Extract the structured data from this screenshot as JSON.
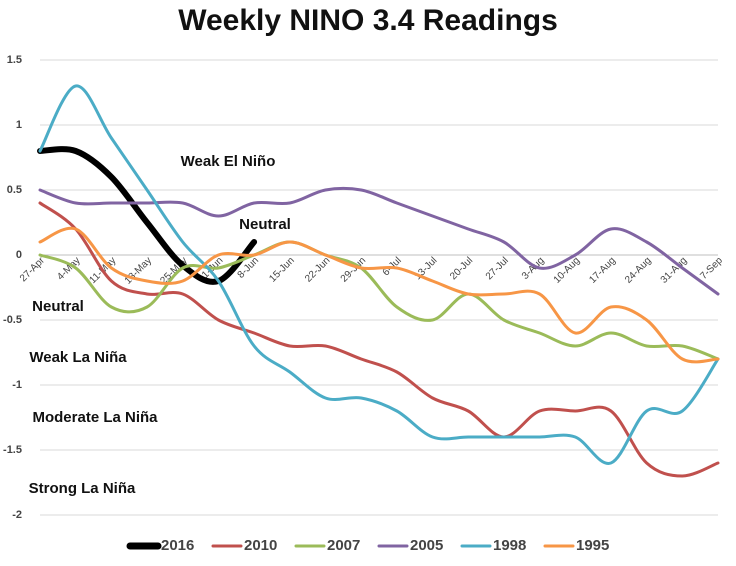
{
  "chart_data": {
    "type": "line",
    "title": "Weekly NINO 3.4 Readings",
    "categories": [
      "27-Apr",
      "4-May",
      "11-May",
      "18-May",
      "25-May",
      "1-Jun",
      "8-Jun",
      "15-Jun",
      "22-Jun",
      "29-Jun",
      "6-Jul",
      "13-Jul",
      "20-Jul",
      "27-Jul",
      "3-Aug",
      "10-Aug",
      "17-Aug",
      "24-Aug",
      "31-Aug",
      "7-Sep"
    ],
    "series": [
      {
        "name": "2016",
        "color": "#000000",
        "values": [
          0.8,
          0.8,
          0.6,
          0.25,
          -0.08,
          -0.2,
          0.1,
          null,
          null,
          null,
          null,
          null,
          null,
          null,
          null,
          null,
          null,
          null,
          null,
          null
        ]
      },
      {
        "name": "2010",
        "color": "#c0504d",
        "values": [
          0.4,
          0.2,
          -0.2,
          -0.3,
          -0.3,
          -0.5,
          -0.6,
          -0.7,
          -0.7,
          -0.8,
          -0.9,
          -1.1,
          -1.2,
          -1.4,
          -1.2,
          -1.2,
          -1.2,
          -1.6,
          -1.7,
          -1.6
        ]
      },
      {
        "name": "2007",
        "color": "#9bbb59",
        "values": [
          0,
          -0.1,
          -0.4,
          -0.4,
          -0.1,
          -0.1,
          0,
          0.1,
          0,
          -0.1,
          -0.4,
          -0.5,
          -0.3,
          -0.5,
          -0.6,
          -0.7,
          -0.6,
          -0.7,
          -0.7,
          -0.8
        ]
      },
      {
        "name": "2005",
        "color": "#8064a2",
        "values": [
          0.5,
          0.4,
          0.4,
          0.4,
          0.4,
          0.3,
          0.4,
          0.4,
          0.5,
          0.5,
          0.4,
          0.3,
          0.2,
          0.1,
          -0.1,
          0,
          0.2,
          0.1,
          -0.1,
          -0.3
        ]
      },
      {
        "name": "1998",
        "color": "#4bacc6",
        "values": [
          0.8,
          1.3,
          0.9,
          0.5,
          0.1,
          -0.2,
          -0.7,
          -0.9,
          -1.1,
          -1.1,
          -1.2,
          -1.4,
          -1.4,
          -1.4,
          -1.4,
          -1.4,
          -1.6,
          -1.2,
          -1.2,
          -0.8
        ]
      },
      {
        "name": "1995",
        "color": "#f79646",
        "values": [
          0.1,
          0.2,
          -0.1,
          -0.2,
          -0.2,
          0,
          0,
          0.1,
          0,
          -0.1,
          -0.1,
          -0.2,
          -0.3,
          -0.3,
          -0.3,
          -0.6,
          -0.4,
          -0.5,
          -0.8,
          -0.8
        ]
      }
    ],
    "annotations": [
      "Weak El Niño",
      "Neutral",
      "Neutral",
      "Weak La Niña",
      "Moderate La Niña",
      "Strong La Niña"
    ],
    "ylim": [
      -2,
      1.5
    ],
    "yticks": [
      1.5,
      1,
      0.5,
      0,
      -0.5,
      -1,
      -1.5,
      -2
    ],
    "grid": true,
    "legend": "bottom"
  }
}
